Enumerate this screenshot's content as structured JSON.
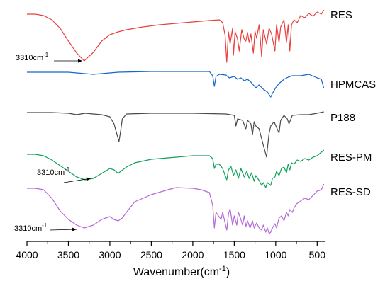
{
  "chart_data": {
    "type": "line",
    "title": "",
    "xlabel": "Wavenumber(cm",
    "xlabel_sup": "-1",
    "xlabel_tail": ")",
    "ylabel": "",
    "xlim": [
      4000,
      400
    ],
    "x_reversed": true,
    "x_ticks": [
      "4000",
      "3500",
      "3000",
      "2500",
      "2000",
      "1500",
      "1000",
      "500"
    ],
    "grid": false,
    "series": [
      {
        "name": "RES",
        "color": "#e8403f",
        "points": [
          [
            4000,
            20
          ],
          [
            3900,
            20
          ],
          [
            3800,
            22
          ],
          [
            3700,
            28
          ],
          [
            3600,
            40
          ],
          [
            3500,
            58
          ],
          [
            3400,
            75
          ],
          [
            3310,
            86
          ],
          [
            3200,
            74
          ],
          [
            3100,
            58
          ],
          [
            3000,
            49
          ],
          [
            2900,
            45
          ],
          [
            2800,
            42
          ],
          [
            2600,
            38
          ],
          [
            2400,
            35
          ],
          [
            2200,
            33
          ],
          [
            2000,
            31
          ],
          [
            1800,
            29
          ],
          [
            1680,
            28
          ],
          [
            1640,
            32
          ],
          [
            1610,
            50
          ],
          [
            1590,
            88
          ],
          [
            1570,
            45
          ],
          [
            1550,
            62
          ],
          [
            1520,
            40
          ],
          [
            1510,
            78
          ],
          [
            1490,
            45
          ],
          [
            1460,
            55
          ],
          [
            1440,
            72
          ],
          [
            1410,
            42
          ],
          [
            1380,
            55
          ],
          [
            1360,
            58
          ],
          [
            1340,
            46
          ],
          [
            1320,
            60
          ],
          [
            1300,
            48
          ],
          [
            1270,
            75
          ],
          [
            1250,
            44
          ],
          [
            1230,
            54
          ],
          [
            1200,
            35
          ],
          [
            1170,
            80
          ],
          [
            1150,
            42
          ],
          [
            1110,
            62
          ],
          [
            1080,
            40
          ],
          [
            1050,
            48
          ],
          [
            1010,
            72
          ],
          [
            990,
            35
          ],
          [
            960,
            60
          ],
          [
            940,
            38
          ],
          [
            900,
            28
          ],
          [
            870,
            60
          ],
          [
            850,
            35
          ],
          [
            830,
            72
          ],
          [
            810,
            35
          ],
          [
            780,
            28
          ],
          [
            740,
            32
          ],
          [
            700,
            22
          ],
          [
            650,
            25
          ],
          [
            600,
            19
          ],
          [
            550,
            23
          ],
          [
            500,
            17
          ],
          [
            450,
            20
          ],
          [
            420,
            14
          ]
        ]
      },
      {
        "name": "HPMCAS",
        "color": "#1566c8",
        "points": [
          [
            4000,
            102
          ],
          [
            3500,
            102
          ],
          [
            3400,
            103
          ],
          [
            3200,
            105
          ],
          [
            3100,
            104
          ],
          [
            3000,
            103
          ],
          [
            2900,
            102
          ],
          [
            2500,
            101
          ],
          [
            2000,
            101
          ],
          [
            1800,
            101
          ],
          [
            1760,
            107
          ],
          [
            1740,
            122
          ],
          [
            1720,
            108
          ],
          [
            1680,
            105
          ],
          [
            1600,
            106
          ],
          [
            1560,
            110
          ],
          [
            1500,
            108
          ],
          [
            1460,
            112
          ],
          [
            1420,
            110
          ],
          [
            1380,
            114
          ],
          [
            1340,
            112
          ],
          [
            1300,
            116
          ],
          [
            1240,
            124
          ],
          [
            1200,
            120
          ],
          [
            1150,
            126
          ],
          [
            1100,
            130
          ],
          [
            1060,
            137
          ],
          [
            1040,
            132
          ],
          [
            1000,
            124
          ],
          [
            960,
            118
          ],
          [
            900,
            112
          ],
          [
            850,
            109
          ],
          [
            800,
            107
          ],
          [
            700,
            107
          ],
          [
            600,
            105
          ],
          [
            500,
            110
          ],
          [
            450,
            112
          ],
          [
            420,
            125
          ]
        ]
      },
      {
        "name": "P188",
        "color": "#4a4a4a",
        "points": [
          [
            4000,
            159
          ],
          [
            3700,
            159
          ],
          [
            3500,
            160
          ],
          [
            3400,
            162
          ],
          [
            3300,
            160
          ],
          [
            3100,
            162
          ],
          [
            3000,
            165
          ],
          [
            2950,
            175
          ],
          [
            2890,
            200
          ],
          [
            2870,
            185
          ],
          [
            2850,
            168
          ],
          [
            2800,
            161
          ],
          [
            2500,
            160
          ],
          [
            2000,
            160
          ],
          [
            1600,
            161
          ],
          [
            1500,
            163
          ],
          [
            1480,
            178
          ],
          [
            1460,
            168
          ],
          [
            1400,
            170
          ],
          [
            1360,
            182
          ],
          [
            1340,
            170
          ],
          [
            1300,
            175
          ],
          [
            1280,
            190
          ],
          [
            1260,
            172
          ],
          [
            1240,
            178
          ],
          [
            1200,
            182
          ],
          [
            1150,
            205
          ],
          [
            1110,
            222
          ],
          [
            1100,
            210
          ],
          [
            1080,
            188
          ],
          [
            1060,
            178
          ],
          [
            1020,
            172
          ],
          [
            960,
            188
          ],
          [
            940,
            170
          ],
          [
            900,
            163
          ],
          [
            860,
            168
          ],
          [
            840,
            175
          ],
          [
            800,
            163
          ],
          [
            700,
            162
          ],
          [
            600,
            162
          ],
          [
            500,
            160
          ],
          [
            420,
            158
          ]
        ]
      },
      {
        "name": "RES-PM",
        "color": "#10a15a",
        "points": [
          [
            4000,
            218
          ],
          [
            3900,
            218
          ],
          [
            3800,
            220
          ],
          [
            3700,
            226
          ],
          [
            3600,
            234
          ],
          [
            3500,
            242
          ],
          [
            3400,
            250
          ],
          [
            3300,
            254
          ],
          [
            3200,
            252
          ],
          [
            3100,
            245
          ],
          [
            3000,
            238
          ],
          [
            2950,
            240
          ],
          [
            2900,
            245
          ],
          [
            2880,
            243
          ],
          [
            2800,
            236
          ],
          [
            2700,
            230
          ],
          [
            2500,
            225
          ],
          [
            2200,
            222
          ],
          [
            2000,
            220
          ],
          [
            1800,
            220
          ],
          [
            1760,
            224
          ],
          [
            1740,
            238
          ],
          [
            1720,
            232
          ],
          [
            1680,
            232
          ],
          [
            1640,
            238
          ],
          [
            1610,
            248
          ],
          [
            1590,
            254
          ],
          [
            1570,
            240
          ],
          [
            1540,
            235
          ],
          [
            1510,
            248
          ],
          [
            1480,
            240
          ],
          [
            1450,
            252
          ],
          [
            1420,
            238
          ],
          [
            1380,
            250
          ],
          [
            1350,
            242
          ],
          [
            1320,
            252
          ],
          [
            1290,
            244
          ],
          [
            1260,
            256
          ],
          [
            1240,
            248
          ],
          [
            1200,
            255
          ],
          [
            1170,
            262
          ],
          [
            1150,
            258
          ],
          [
            1120,
            265
          ],
          [
            1100,
            258
          ],
          [
            1060,
            262
          ],
          [
            1040,
            252
          ],
          [
            1010,
            250
          ],
          [
            990,
            242
          ],
          [
            960,
            248
          ],
          [
            930,
            238
          ],
          [
            900,
            236
          ],
          [
            870,
            244
          ],
          [
            850,
            232
          ],
          [
            830,
            240
          ],
          [
            810,
            230
          ],
          [
            780,
            232
          ],
          [
            740,
            226
          ],
          [
            700,
            228
          ],
          [
            650,
            224
          ],
          [
            600,
            226
          ],
          [
            550,
            222
          ],
          [
            500,
            220
          ],
          [
            420,
            212
          ]
        ]
      },
      {
        "name": "RES-SD",
        "color": "#b36ad8",
        "points": [
          [
            4000,
            266
          ],
          [
            3900,
            266
          ],
          [
            3800,
            268
          ],
          [
            3700,
            280
          ],
          [
            3600,
            298
          ],
          [
            3500,
            310
          ],
          [
            3400,
            318
          ],
          [
            3310,
            322
          ],
          [
            3200,
            318
          ],
          [
            3100,
            310
          ],
          [
            3000,
            306
          ],
          [
            2950,
            310
          ],
          [
            2900,
            312
          ],
          [
            2850,
            308
          ],
          [
            2800,
            300
          ],
          [
            2700,
            285
          ],
          [
            2500,
            275
          ],
          [
            2300,
            268
          ],
          [
            2200,
            265
          ],
          [
            2000,
            266
          ],
          [
            1900,
            268
          ],
          [
            1800,
            272
          ],
          [
            1760,
            290
          ],
          [
            1740,
            322
          ],
          [
            1720,
            300
          ],
          [
            1690,
            305
          ],
          [
            1660,
            310
          ],
          [
            1640,
            300
          ],
          [
            1610,
            315
          ],
          [
            1590,
            325
          ],
          [
            1570,
            302
          ],
          [
            1550,
            295
          ],
          [
            1520,
            318
          ],
          [
            1500,
            305
          ],
          [
            1470,
            318
          ],
          [
            1450,
            300
          ],
          [
            1420,
            310
          ],
          [
            1400,
            318
          ],
          [
            1380,
            305
          ],
          [
            1360,
            320
          ],
          [
            1340,
            312
          ],
          [
            1310,
            322
          ],
          [
            1280,
            312
          ],
          [
            1260,
            322
          ],
          [
            1230,
            315
          ],
          [
            1200,
            322
          ],
          [
            1170,
            325
          ],
          [
            1150,
            318
          ],
          [
            1120,
            328
          ],
          [
            1100,
            322
          ],
          [
            1080,
            330
          ],
          [
            1060,
            328
          ],
          [
            1040,
            322
          ],
          [
            1010,
            316
          ],
          [
            990,
            322
          ],
          [
            960,
            308
          ],
          [
            930,
            305
          ],
          [
            900,
            312
          ],
          [
            870,
            300
          ],
          [
            850,
            305
          ],
          [
            830,
            296
          ],
          [
            800,
            300
          ],
          [
            780,
            294
          ],
          [
            750,
            288
          ],
          [
            700,
            284
          ],
          [
            650,
            280
          ],
          [
            600,
            282
          ],
          [
            550,
            276
          ],
          [
            500,
            270
          ],
          [
            450,
            268
          ],
          [
            420,
            260
          ]
        ]
      }
    ],
    "annotations": [
      {
        "text": "3310cm",
        "sup": "-1",
        "series": "RES"
      },
      {
        "text": "3310cm",
        "sup": "-1",
        "series": "RES-PM"
      },
      {
        "text": "3310cm",
        "sup": "-1",
        "series": "RES-SD"
      }
    ]
  }
}
